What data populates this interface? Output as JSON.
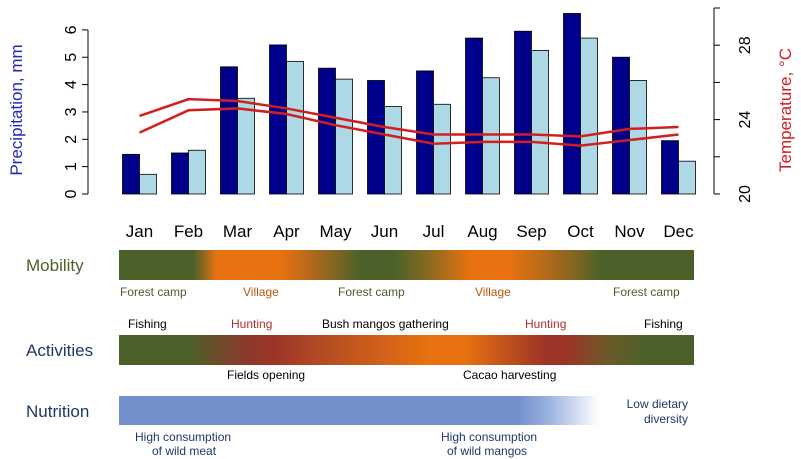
{
  "chart_data": {
    "type": "bar",
    "categories": [
      "Jan",
      "Feb",
      "Mar",
      "Apr",
      "May",
      "Jun",
      "Jul",
      "Aug",
      "Sep",
      "Oct",
      "Nov",
      "Dec"
    ],
    "series": [
      {
        "values": [
          1.45,
          1.5,
          4.65,
          5.45,
          4.6,
          4.15,
          4.5,
          5.7,
          5.95,
          6.6,
          5.0,
          1.95
        ],
        "color": "#00008b"
      },
      {
        "values": [
          0.72,
          1.6,
          3.5,
          4.85,
          4.2,
          3.2,
          3.28,
          4.25,
          5.25,
          5.7,
          4.15,
          1.2
        ],
        "color": "#add8e6"
      }
    ],
    "lines": [
      {
        "axis": "right",
        "values": [
          24.2,
          25.1,
          25.0,
          24.6,
          24.1,
          23.6,
          23.2,
          23.2,
          23.2,
          23.1,
          23.5,
          23.6
        ],
        "color": "#d11f1f"
      },
      {
        "axis": "right",
        "values": [
          23.3,
          24.5,
          24.6,
          24.3,
          23.7,
          23.2,
          22.7,
          22.8,
          22.8,
          22.6,
          22.9,
          23.2
        ],
        "color": "#d11f1f"
      }
    ],
    "ylabel": "Precipitation, mm",
    "ylabel_color": "#2727b5",
    "ylim": [
      0,
      6.8
    ],
    "yticks": [
      "0",
      "1",
      "2",
      "3",
      "4",
      "5",
      "6"
    ],
    "y2label": "Temperature, °C",
    "y2label_color": "#d11f1f",
    "y2lim": [
      20,
      30
    ],
    "y2ticks": [
      "20",
      "24",
      "28"
    ],
    "grid": false
  },
  "bands": {
    "mobility": {
      "title": "Mobility",
      "title_color": "#4b6129",
      "labels": [
        {
          "text": "Forest camp",
          "color": "#4b6129"
        },
        {
          "text": "Village",
          "color": "#b8580a"
        },
        {
          "text": "Forest camp",
          "color": "#4b6129"
        },
        {
          "text": "Village",
          "color": "#b8580a"
        },
        {
          "text": "Forest camp",
          "color": "#4b6129"
        }
      ]
    },
    "activities": {
      "title": "Activities",
      "title_color": "#1f3864",
      "labels_above": [
        {
          "text": "Fishing",
          "color": "#000000"
        },
        {
          "text": "Hunting",
          "color": "#b03030"
        },
        {
          "text": "Bush mangos gathering",
          "color": "#000000"
        },
        {
          "text": "Hunting",
          "color": "#b03030"
        },
        {
          "text": "Fishing",
          "color": "#000000"
        }
      ],
      "labels_below": [
        {
          "text": "Fields opening",
          "color": "#000000"
        },
        {
          "text": "Cacao harvesting",
          "color": "#000000"
        }
      ]
    },
    "nutrition": {
      "title": "Nutrition",
      "title_color": "#1f3864",
      "text_color": "#1f3864",
      "low_line1": "Low dietary",
      "low_line2": "diversity",
      "wild_meat_line1": "High consumption",
      "wild_meat_line2": "of wild meat",
      "wild_mangos_line1": "High consumption",
      "wild_mangos_line2": "of wild mangos"
    }
  }
}
